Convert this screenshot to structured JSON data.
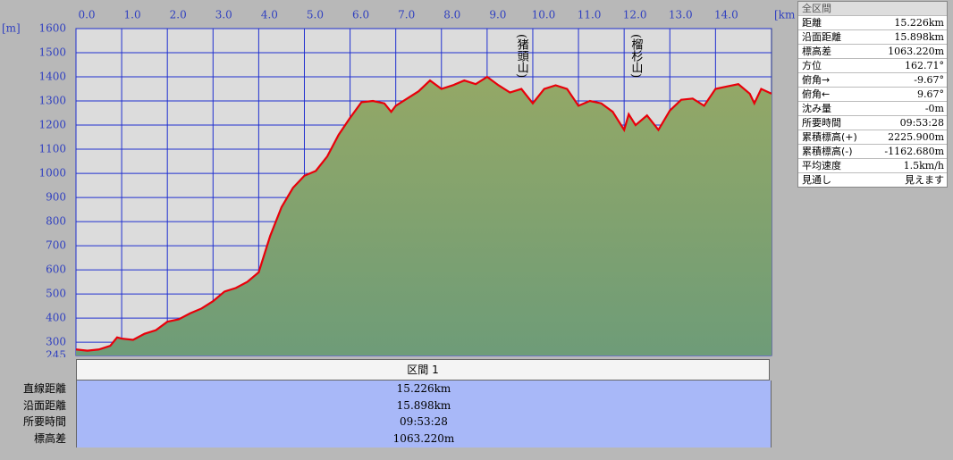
{
  "chart_data": {
    "type": "area",
    "x_unit": "[km]",
    "y_unit": "[m]",
    "x": [
      0,
      0.25,
      0.5,
      0.75,
      0.9,
      1.0,
      1.25,
      1.5,
      1.75,
      2.0,
      2.25,
      2.5,
      2.75,
      3.0,
      3.25,
      3.5,
      3.75,
      4.0,
      4.25,
      4.5,
      4.75,
      5.0,
      5.25,
      5.5,
      5.75,
      6.0,
      6.25,
      6.5,
      6.75,
      6.9,
      7.0,
      7.25,
      7.5,
      7.75,
      8.0,
      8.25,
      8.5,
      8.75,
      9.0,
      9.25,
      9.5,
      9.75,
      10.0,
      10.25,
      10.5,
      10.75,
      11.0,
      11.25,
      11.5,
      11.75,
      12.0,
      12.1,
      12.25,
      12.5,
      12.75,
      13.0,
      13.25,
      13.5,
      13.75,
      14.0,
      14.25,
      14.5,
      14.75,
      14.85,
      15.0,
      15.226
    ],
    "series": [
      {
        "color": "#e8000a",
        "area_color": "#94a866",
        "values": [
          270,
          265,
          270,
          285,
          320,
          315,
          310,
          335,
          350,
          385,
          395,
          420,
          440,
          470,
          510,
          525,
          550,
          590,
          740,
          860,
          940,
          990,
          1010,
          1070,
          1160,
          1230,
          1295,
          1300,
          1290,
          1255,
          1280,
          1310,
          1340,
          1385,
          1350,
          1365,
          1385,
          1370,
          1400,
          1365,
          1335,
          1350,
          1290,
          1350,
          1365,
          1350,
          1280,
          1300,
          1290,
          1255,
          1180,
          1245,
          1200,
          1240,
          1180,
          1260,
          1305,
          1310,
          1280,
          1350,
          1360,
          1370,
          1330,
          1290,
          1350,
          1330
        ]
      }
    ],
    "xlim": [
      0,
      15.226
    ],
    "ylim": [
      245,
      1600
    ],
    "xticks": [
      {
        "value": 0,
        "label": "0.0"
      },
      {
        "value": 1,
        "label": "1.0"
      },
      {
        "value": 2,
        "label": "2.0"
      },
      {
        "value": 3,
        "label": "3.0"
      },
      {
        "value": 4,
        "label": "4.0"
      },
      {
        "value": 5,
        "label": "5.0"
      },
      {
        "value": 6,
        "label": "6.0"
      },
      {
        "value": 7,
        "label": "7.0"
      },
      {
        "value": 8,
        "label": "8.0"
      },
      {
        "value": 9,
        "label": "9.0"
      },
      {
        "value": 10,
        "label": "10.0"
      },
      {
        "value": 11,
        "label": "11.0"
      },
      {
        "value": 12,
        "label": "12.0"
      },
      {
        "value": 13,
        "label": "13.0"
      },
      {
        "value": 14,
        "label": "14.0"
      }
    ],
    "yticks": [
      245,
      300,
      400,
      500,
      600,
      700,
      800,
      900,
      1000,
      1100,
      1200,
      1300,
      1400,
      1500,
      1600
    ],
    "grid": true,
    "annotations": [
      {
        "x": 9.75,
        "text": "(猪頭山)"
      },
      {
        "x": 12.25,
        "text": "(榴杉山)"
      }
    ]
  },
  "summary_panel": {
    "title": "全区間",
    "rows": [
      [
        "距離",
        "15.226km"
      ],
      [
        "沿面距離",
        "15.898km"
      ],
      [
        "標高差",
        "1063.220m"
      ],
      [
        "方位",
        "162.71°"
      ],
      [
        "俯角→",
        "-9.67°"
      ],
      [
        "俯角←",
        "9.67°"
      ],
      [
        "沈み量",
        "-0m"
      ],
      [
        "所要時間",
        "09:53:28"
      ],
      [
        "累積標高(+)",
        "2225.900m"
      ],
      [
        "累積標高(-)",
        "-1162.680m"
      ],
      [
        "平均速度",
        "1.5km/h"
      ],
      [
        "見通し",
        "見えます"
      ]
    ]
  },
  "section_table": {
    "header": "区間 1",
    "rows": [
      [
        "直線距離",
        "15.226km"
      ],
      [
        "沿面距離",
        "15.898km"
      ],
      [
        "所要時間",
        "09:53:28"
      ],
      [
        "標高差",
        "1063.220m"
      ]
    ]
  }
}
